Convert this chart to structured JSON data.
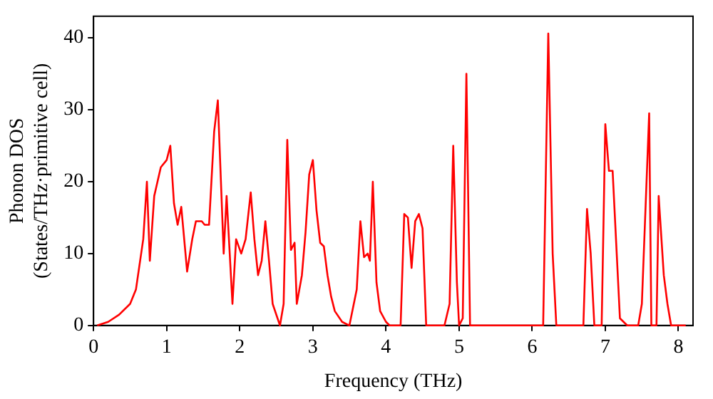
{
  "chart_data": {
    "type": "line",
    "xlabel": "Frequency (THz)",
    "ylabel": "Phonon DOS\n(States/THz·primitive cell)",
    "x": [
      0.05,
      0.2,
      0.35,
      0.5,
      0.58,
      0.68,
      0.73,
      0.77,
      0.83,
      0.92,
      1.0,
      1.05,
      1.1,
      1.15,
      1.2,
      1.28,
      1.35,
      1.4,
      1.48,
      1.52,
      1.58,
      1.65,
      1.7,
      1.78,
      1.82,
      1.9,
      1.95,
      2.02,
      2.08,
      2.15,
      2.2,
      2.25,
      2.3,
      2.35,
      2.4,
      2.45,
      2.55,
      2.6,
      2.65,
      2.7,
      2.75,
      2.78,
      2.85,
      2.9,
      2.95,
      3.0,
      3.05,
      3.1,
      3.15,
      3.2,
      3.25,
      3.3,
      3.4,
      3.5,
      3.6,
      3.65,
      3.7,
      3.75,
      3.78,
      3.82,
      3.87,
      3.92,
      4.0,
      4.05,
      4.2,
      4.25,
      4.3,
      4.35,
      4.4,
      4.45,
      4.5,
      4.55,
      4.8,
      4.87,
      4.92,
      4.97,
      5.0,
      5.05,
      5.1,
      5.15,
      6.15,
      6.22,
      6.28,
      6.33,
      6.7,
      6.75,
      6.8,
      6.85,
      6.95,
      7.0,
      7.05,
      7.1,
      7.2,
      7.3,
      7.45,
      7.5,
      7.6,
      7.63,
      7.7,
      7.73,
      7.8,
      7.85,
      7.9,
      8.1
    ],
    "series": [
      {
        "color": "#ff0000",
        "values": [
          0,
          0.5,
          1.5,
          3,
          5,
          12,
          20,
          9,
          18,
          22,
          23,
          25,
          17,
          14,
          16.5,
          7.5,
          12,
          14.5,
          14.5,
          14,
          14,
          27,
          31.3,
          10,
          18,
          3,
          12,
          10,
          12,
          18.5,
          12,
          7,
          9,
          14.5,
          9,
          3,
          0,
          3,
          25.8,
          10.5,
          11.5,
          3,
          7,
          13,
          21,
          23,
          16,
          11.5,
          11,
          7,
          4,
          2,
          0.5,
          0,
          5,
          14.5,
          9.5,
          10,
          9,
          20,
          6,
          2,
          0.5,
          0,
          0,
          15.5,
          15,
          8,
          14.5,
          15.5,
          13.5,
          0,
          0,
          3,
          25,
          6,
          0,
          1,
          35,
          0,
          0,
          40.6,
          10,
          0,
          0,
          16.2,
          10,
          0,
          0,
          28,
          21.5,
          21.5,
          1,
          0,
          0,
          3,
          29.5,
          0,
          0,
          18,
          7,
          3,
          0,
          0
        ]
      }
    ],
    "xlim": [
      0,
      8.2
    ],
    "ylim": [
      0,
      43
    ],
    "xticks": [
      0,
      1,
      2,
      3,
      4,
      5,
      6,
      7,
      8
    ],
    "yticks": [
      0,
      10,
      20,
      30,
      40
    ],
    "grid": false,
    "legend": false,
    "marker": "none",
    "line_style": "solid"
  }
}
